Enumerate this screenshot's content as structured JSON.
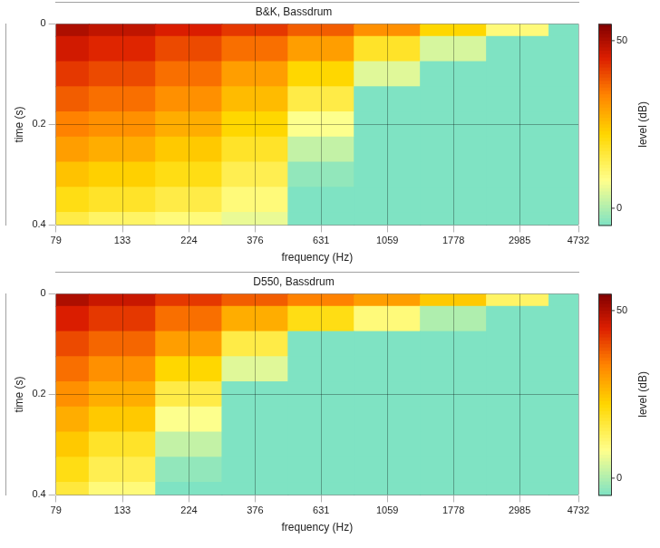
{
  "chart_data": [
    {
      "type": "heatmap",
      "title": "B&K, Bassdrum",
      "x_label": "frequency (Hz)",
      "y_label": "time (s)",
      "x": [
        79,
        133,
        224,
        376,
        631,
        1059,
        1778,
        2985,
        4732
      ],
      "y": [
        0,
        0.05,
        0.1,
        0.15,
        0.2,
        0.25,
        0.3,
        0.35,
        0.4
      ],
      "values": [
        [
          50,
          48,
          45,
          42,
          38,
          32,
          22,
          10,
          -5
        ],
        [
          46,
          44,
          40,
          36,
          30,
          18,
          4,
          -5,
          -5
        ],
        [
          42,
          40,
          36,
          30,
          22,
          5,
          -5,
          -5,
          -5
        ],
        [
          38,
          36,
          32,
          26,
          15,
          -5,
          -5,
          -5,
          -5
        ],
        [
          34,
          32,
          28,
          22,
          8,
          -5,
          -5,
          -5,
          -5
        ],
        [
          30,
          28,
          24,
          18,
          2,
          -5,
          -5,
          -5,
          -5
        ],
        [
          25,
          23,
          20,
          14,
          -3,
          -5,
          -5,
          -5,
          -5
        ],
        [
          20,
          18,
          15,
          10,
          -5,
          -5,
          -5,
          -5,
          -5
        ],
        [
          15,
          12,
          10,
          6,
          -5,
          -5,
          -5,
          -5,
          -5
        ]
      ],
      "log": "x",
      "grid": true,
      "xlim": [
        79,
        4732
      ],
      "xticks": [
        79,
        133,
        224,
        376,
        631,
        1059,
        1778,
        2985,
        4732
      ],
      "ylim": [
        0,
        0.4
      ],
      "yticks": [
        0,
        0.2,
        0.4
      ],
      "colorbar": {
        "label": "level (dB)",
        "range": [
          -5,
          55
        ],
        "ticks": [
          0,
          50
        ]
      }
    },
    {
      "type": "heatmap",
      "title": "D550, Bassdrum",
      "x_label": "frequency (Hz)",
      "y_label": "time (s)",
      "x": [
        79,
        133,
        224,
        376,
        631,
        1059,
        1778,
        2985,
        4732
      ],
      "y": [
        0,
        0.05,
        0.1,
        0.15,
        0.2,
        0.25,
        0.3,
        0.35,
        0.4
      ],
      "values": [
        [
          50,
          47,
          42,
          38,
          34,
          30,
          24,
          12,
          -5
        ],
        [
          45,
          42,
          36,
          28,
          20,
          10,
          0,
          -5,
          -5
        ],
        [
          40,
          37,
          30,
          15,
          -5,
          -5,
          -5,
          -5,
          -5
        ],
        [
          36,
          32,
          22,
          5,
          -5,
          -5,
          -5,
          -5,
          -5
        ],
        [
          32,
          28,
          15,
          -5,
          -5,
          -5,
          -5,
          -5,
          -5
        ],
        [
          28,
          24,
          8,
          -5,
          -5,
          -5,
          -5,
          -5,
          -5
        ],
        [
          24,
          18,
          2,
          -5,
          -5,
          -5,
          -5,
          -5,
          -5
        ],
        [
          20,
          14,
          -3,
          -5,
          -5,
          -5,
          -5,
          -5,
          -5
        ],
        [
          16,
          10,
          -5,
          -5,
          -5,
          -5,
          -5,
          -5,
          -5
        ]
      ],
      "log": "x",
      "grid": true,
      "xlim": [
        79,
        4732
      ],
      "xticks": [
        79,
        133,
        224,
        376,
        631,
        1059,
        1778,
        2985,
        4732
      ],
      "ylim": [
        0,
        0.4
      ],
      "yticks": [
        0,
        0.2,
        0.4
      ],
      "colorbar": {
        "label": "level (dB)",
        "range": [
          -5,
          55
        ],
        "ticks": [
          0,
          50
        ]
      }
    }
  ]
}
